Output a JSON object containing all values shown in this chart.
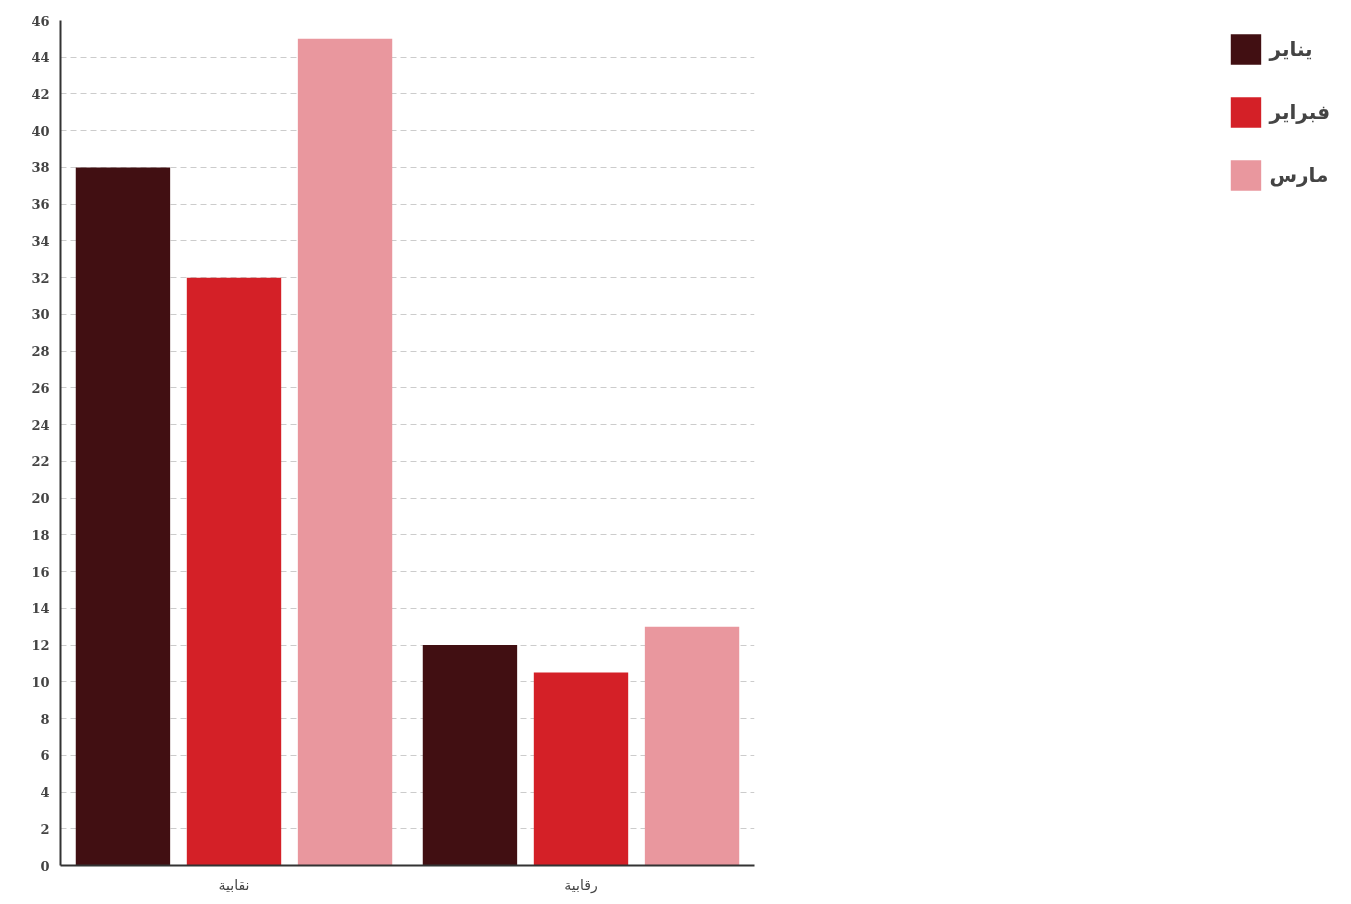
{
  "chart_data": {
    "type": "bar",
    "categories": [
      "نقابية",
      "رقابية"
    ],
    "series": [
      {
        "name": "يناير",
        "color": "#410f12",
        "values": [
          38,
          12
        ]
      },
      {
        "name": "فبراير",
        "color": "#d42027",
        "values": [
          32,
          10.5
        ]
      },
      {
        "name": "مارس",
        "color": "#e9979e",
        "values": [
          45,
          13
        ]
      }
    ],
    "ylim": [
      0,
      46
    ],
    "yticks": [
      0,
      2,
      4,
      6,
      8,
      10,
      12,
      14,
      16,
      18,
      20,
      22,
      24,
      26,
      28,
      30,
      32,
      34,
      36,
      38,
      40,
      42,
      44,
      46
    ],
    "grid": "y",
    "legend": "top right"
  }
}
